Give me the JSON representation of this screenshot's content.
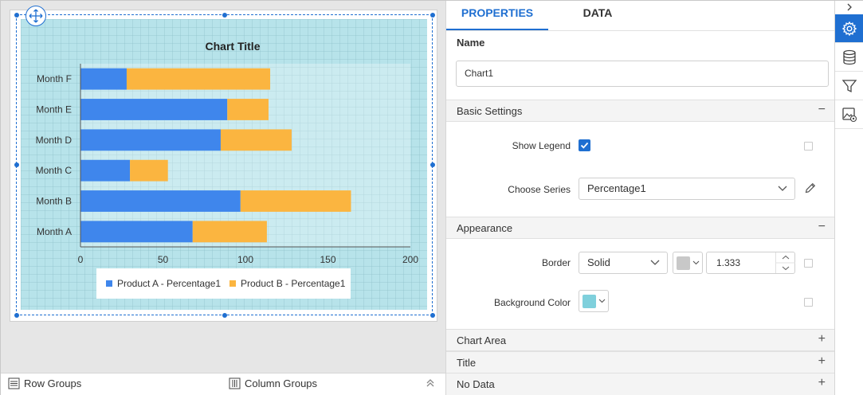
{
  "tabs": [
    {
      "label": "PROPERTIES"
    },
    {
      "label": "DATA"
    }
  ],
  "name_section": {
    "label": "Name",
    "value": "Chart1"
  },
  "basic_settings": {
    "title": "Basic Settings",
    "toggle": "−",
    "show_legend_label": "Show Legend",
    "show_legend_checked": true,
    "choose_series_label": "Choose Series",
    "choose_series_value": "Percentage1"
  },
  "appearance": {
    "title": "Appearance",
    "toggle": "−",
    "border_label": "Border",
    "border_style": "Solid",
    "border_color": "#c8c8c8",
    "border_width": "1.333",
    "background_label": "Background Color",
    "background_color": "#7fd0dc"
  },
  "collapsed_sections": [
    {
      "title": "Chart Area",
      "toggle": "+"
    },
    {
      "title": "Title",
      "toggle": "+"
    },
    {
      "title": "No Data",
      "toggle": "+"
    }
  ],
  "bottom_bar": {
    "row_groups": "Row Groups",
    "column_groups": "Column Groups"
  },
  "rail": {
    "collapse_icon": "chevron-right-icon",
    "items": [
      "gear-icon",
      "database-icon",
      "filter-icon",
      "image-settings-icon"
    ],
    "active": "gear-icon"
  },
  "colors": {
    "accent": "#1f6fd1",
    "series_a": "#3f86ec",
    "series_b": "#fbb540",
    "chart_bg": "#b7e3ea"
  },
  "chart_data": {
    "type": "bar",
    "orientation": "horizontal",
    "stacked": true,
    "title": "Chart Title",
    "categories": [
      "Month A",
      "Month B",
      "Month C",
      "Month D",
      "Month E",
      "Month F"
    ],
    "series": [
      {
        "name": "Product A - Percentage1",
        "color": "#3f86ec",
        "values": [
          68,
          97,
          30,
          85,
          89,
          28
        ]
      },
      {
        "name": "Product B - Percentage1",
        "color": "#fbb540",
        "values": [
          45,
          67,
          23,
          43,
          25,
          87
        ]
      }
    ],
    "x_ticks": [
      "0",
      "50",
      "100",
      "150",
      "200"
    ],
    "xlim": [
      0,
      200
    ],
    "legend_position": "bottom"
  }
}
